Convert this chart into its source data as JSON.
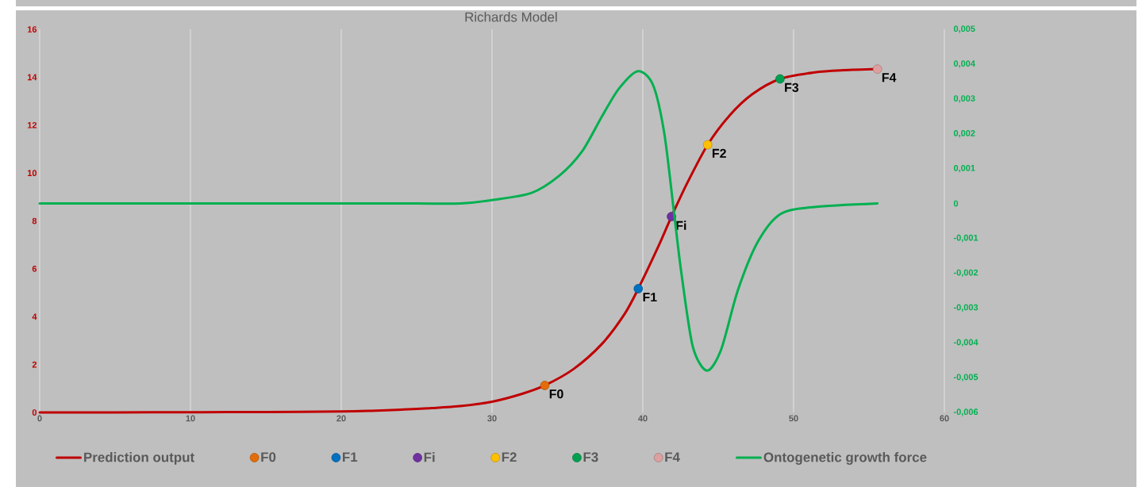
{
  "chart_data": {
    "type": "line",
    "title": "Richards Model",
    "xlim": [
      0,
      60
    ],
    "xticks": [
      0,
      10,
      20,
      30,
      40,
      50,
      60
    ],
    "ylim": [
      0,
      16
    ],
    "yticks": [
      0,
      2,
      4,
      6,
      8,
      10,
      12,
      14,
      16
    ],
    "y2lim": [
      -0.006,
      0.005
    ],
    "y2ticks": [
      {
        "value": -0.006,
        "label": "-0,006"
      },
      {
        "value": -0.005,
        "label": "-0,005"
      },
      {
        "value": -0.004,
        "label": "-0,004"
      },
      {
        "value": -0.003,
        "label": "-0,003"
      },
      {
        "value": -0.002,
        "label": "-0,002"
      },
      {
        "value": -0.001,
        "label": "-0,001"
      },
      0,
      {
        "value": 0.001,
        "label": "0,001"
      },
      {
        "value": 0.002,
        "label": "0,002"
      },
      {
        "value": 0.003,
        "label": "0,003"
      },
      {
        "value": 0.004,
        "label": "0,004"
      },
      {
        "value": 0.005,
        "label": "0,005"
      }
    ],
    "grid": "x",
    "legend": "bottom",
    "marker": "circle",
    "series": [
      {
        "name": "Prediction output",
        "marker": "none",
        "color": "#c00000",
        "x": [
          0,
          5,
          10,
          15,
          20,
          22,
          24,
          26,
          28,
          30,
          32,
          33.5,
          35.4,
          37.3,
          38.8,
          39.7,
          41.05,
          41.9,
          42.93,
          44.3,
          45.75,
          47.26,
          49.1,
          51.4,
          53.3,
          55.56
        ],
        "values": [
          0,
          0,
          0.01,
          0.02,
          0.04,
          0.07,
          0.12,
          0.18,
          0.27,
          0.45,
          0.78,
          1.13,
          1.81,
          2.87,
          4.12,
          5.17,
          6.96,
          8.18,
          9.56,
          11.18,
          12.4,
          13.29,
          13.93,
          14.2,
          14.29,
          14.34
        ]
      },
      {
        "name": "F0",
        "type": "scatter",
        "color": "#e46c0a",
        "x": [
          33.5
        ],
        "values": [
          1.13
        ]
      },
      {
        "name": "F1",
        "type": "scatter",
        "color": "#0070c0",
        "x": [
          39.7
        ],
        "values": [
          5.17
        ]
      },
      {
        "name": "Fi",
        "type": "scatter",
        "color": "#7030a0",
        "x": [
          41.9
        ],
        "values": [
          8.18
        ]
      },
      {
        "name": "F2",
        "type": "scatter",
        "color": "#ffc000",
        "x": [
          44.3
        ],
        "values": [
          11.18
        ]
      },
      {
        "name": "F3",
        "type": "scatter",
        "color": "#00a050",
        "x": [
          49.1
        ],
        "values": [
          13.93
        ]
      },
      {
        "name": "F4",
        "type": "scatter",
        "color": "#dca0a0",
        "x": [
          55.56
        ],
        "values": [
          14.34
        ]
      },
      {
        "name": "Ontogenetic growth force",
        "marker": "none",
        "axis": "y2",
        "color": "#00b050",
        "x": [
          0,
          10,
          20,
          25,
          27.9,
          30,
          32.6,
          34.47,
          35.98,
          37.29,
          38.42,
          39.68,
          40.68,
          41.43,
          42.08,
          42.56,
          43.31,
          44.25,
          45.19,
          46.3,
          47.63,
          49.14,
          51.38,
          55.56
        ],
        "values": [
          0,
          0,
          0,
          0,
          0,
          0.0001,
          0.0003,
          0.0008,
          0.0015,
          0.0025,
          0.0033,
          0.0038,
          0.0034,
          0.002,
          -0.0003,
          -0.002,
          -0.0041,
          -0.0048,
          -0.0042,
          -0.0025,
          -0.0011,
          -0.0003,
          -0.0001,
          0
        ]
      }
    ]
  }
}
